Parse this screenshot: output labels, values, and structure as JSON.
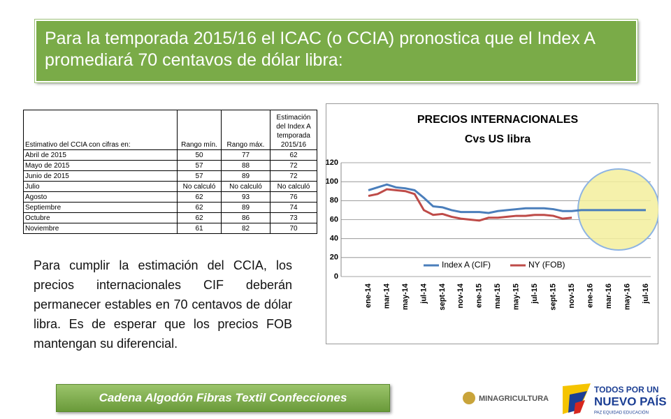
{
  "title": "Para la temporada 2015/16 el ICAC (o CCIA) pronostica que el Index A promediará 70 centavos de dólar libra:",
  "table": {
    "header": [
      "Estimativo del CCIA con cifras en:",
      "Rango mín.",
      "Rango máx.",
      "Estimación del Index A temporada 2015/16"
    ],
    "rows": [
      [
        "Abril de 2015",
        50,
        77,
        62
      ],
      [
        "Mayo de 2015",
        57,
        88,
        72
      ],
      [
        "Junio de 2015",
        57,
        89,
        72
      ],
      [
        "Julio",
        "No calculó",
        "No calculó",
        "No calculó"
      ],
      [
        "Agosto",
        62,
        93,
        76
      ],
      [
        "Septiembre",
        62,
        89,
        74
      ],
      [
        "Octubre",
        62,
        86,
        73
      ],
      [
        "Noviembre",
        61,
        82,
        70
      ]
    ]
  },
  "body": "Para cumplir la estimación del CCIA, los precios internacionales CIF deberán permanecer estables en 70 centavos de dólar libra. Es de esperar que los precios FOB mantengan su diferencial.",
  "footer_button": "Cadena Algodón Fibras Textil Confecciones",
  "logos": {
    "ministry": "MINAGRICULTURA",
    "slogan_1": "TODOS POR UN",
    "slogan_2": "NUEVO PAÍS",
    "slogan_3": "PAZ EQUIDAD EDUCACIÓN"
  },
  "chart_data": {
    "type": "line",
    "title": "PRECIOS INTERNACIONALES",
    "subtitle": "Cvs US libra",
    "categories": [
      "ene-14",
      null,
      "mar-14",
      null,
      "may-14",
      null,
      "jul-14",
      null,
      "sept-14",
      null,
      "nov-14",
      null,
      "ene-15",
      null,
      "mar-15",
      null,
      "may-15",
      null,
      "jul-15",
      null,
      "sept-15",
      null,
      "nov-15",
      null,
      "ene-16",
      null,
      "mar-16",
      null,
      "may-16",
      null,
      "jul-16"
    ],
    "series": [
      {
        "name": "Index A (CIF)",
        "color": "#4a7ebb",
        "values": [
          91,
          94,
          97,
          94,
          93,
          91,
          83,
          74,
          73,
          70,
          68,
          68,
          68,
          67,
          69,
          70,
          71,
          72,
          72,
          72,
          71,
          69,
          69,
          70,
          70,
          70,
          70,
          70,
          70,
          70,
          70
        ]
      },
      {
        "name": "NY (FOB)",
        "color": "#be4b48",
        "values": [
          85,
          87,
          92,
          91,
          90,
          87,
          70,
          65,
          66,
          63,
          61,
          60,
          59,
          62,
          62,
          63,
          64,
          64,
          65,
          65,
          64,
          61,
          62,
          null,
          null,
          null,
          null,
          null,
          null,
          null,
          null
        ]
      }
    ],
    "ylim": [
      0,
      120
    ],
    "yticks": [
      0,
      20,
      40,
      60,
      80,
      100,
      120
    ],
    "grid": true,
    "legend": "bottom"
  }
}
